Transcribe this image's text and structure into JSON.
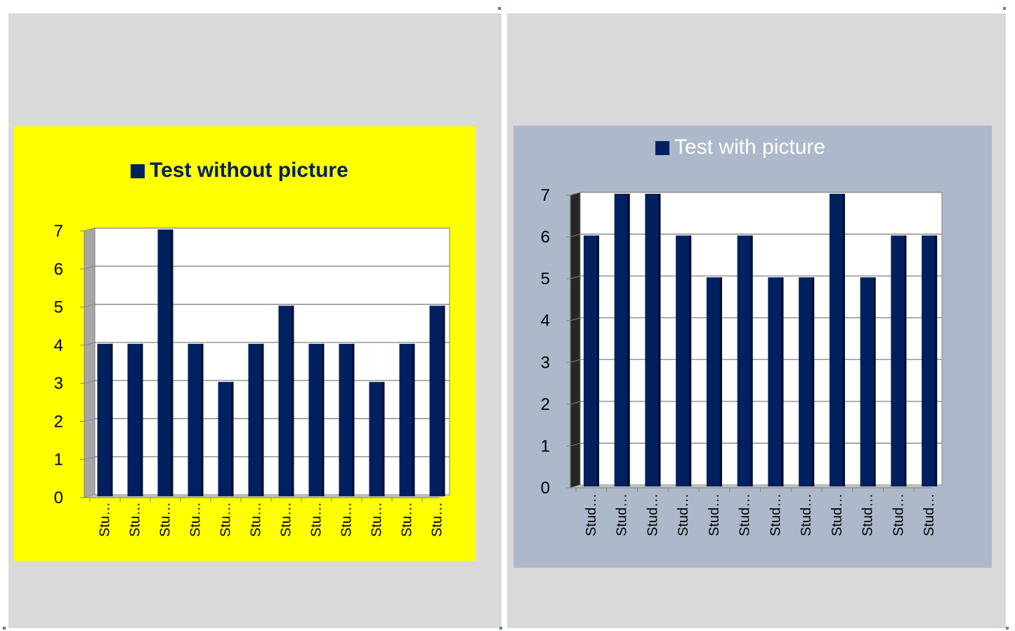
{
  "chart_data": [
    {
      "type": "bar",
      "legend": "Test without picture",
      "categories": [
        "Stu…",
        "Stu…",
        "Stu…",
        "Stu…",
        "Stu…",
        "Stu…",
        "Stu…",
        "Stu…",
        "Stu…",
        "Stu…",
        "Stu…",
        "Stu…"
      ],
      "values": [
        4,
        4,
        7,
        4,
        3,
        4,
        5,
        4,
        4,
        3,
        4,
        5
      ],
      "yticks": [
        "0",
        "1",
        "2",
        "3",
        "4",
        "5",
        "6",
        "7"
      ],
      "ylim": [
        0,
        7
      ],
      "grid": true,
      "legend_position": "top",
      "colors": {
        "background": "#ffff00",
        "bar": "#002060",
        "plot": "#ffffff",
        "wall": "#a6a6a6"
      }
    },
    {
      "type": "bar",
      "legend": "Test with picture",
      "categories": [
        "Stud…",
        "Stud…",
        "Stud…",
        "Stud…",
        "Stud…",
        "Stud…",
        "Stud…",
        "Stud…",
        "Stud…",
        "Stud…",
        "Stud…",
        "Stud…"
      ],
      "values": [
        6,
        7,
        7,
        6,
        5,
        6,
        5,
        5,
        7,
        5,
        6,
        6
      ],
      "yticks": [
        "0",
        "1",
        "2",
        "3",
        "4",
        "5",
        "6",
        "7"
      ],
      "ylim": [
        0,
        7
      ],
      "grid": true,
      "legend_position": "top",
      "colors": {
        "background": "#adb9ca",
        "bar": "#002060",
        "plot": "#ffffff",
        "wall": "#262626"
      }
    }
  ]
}
